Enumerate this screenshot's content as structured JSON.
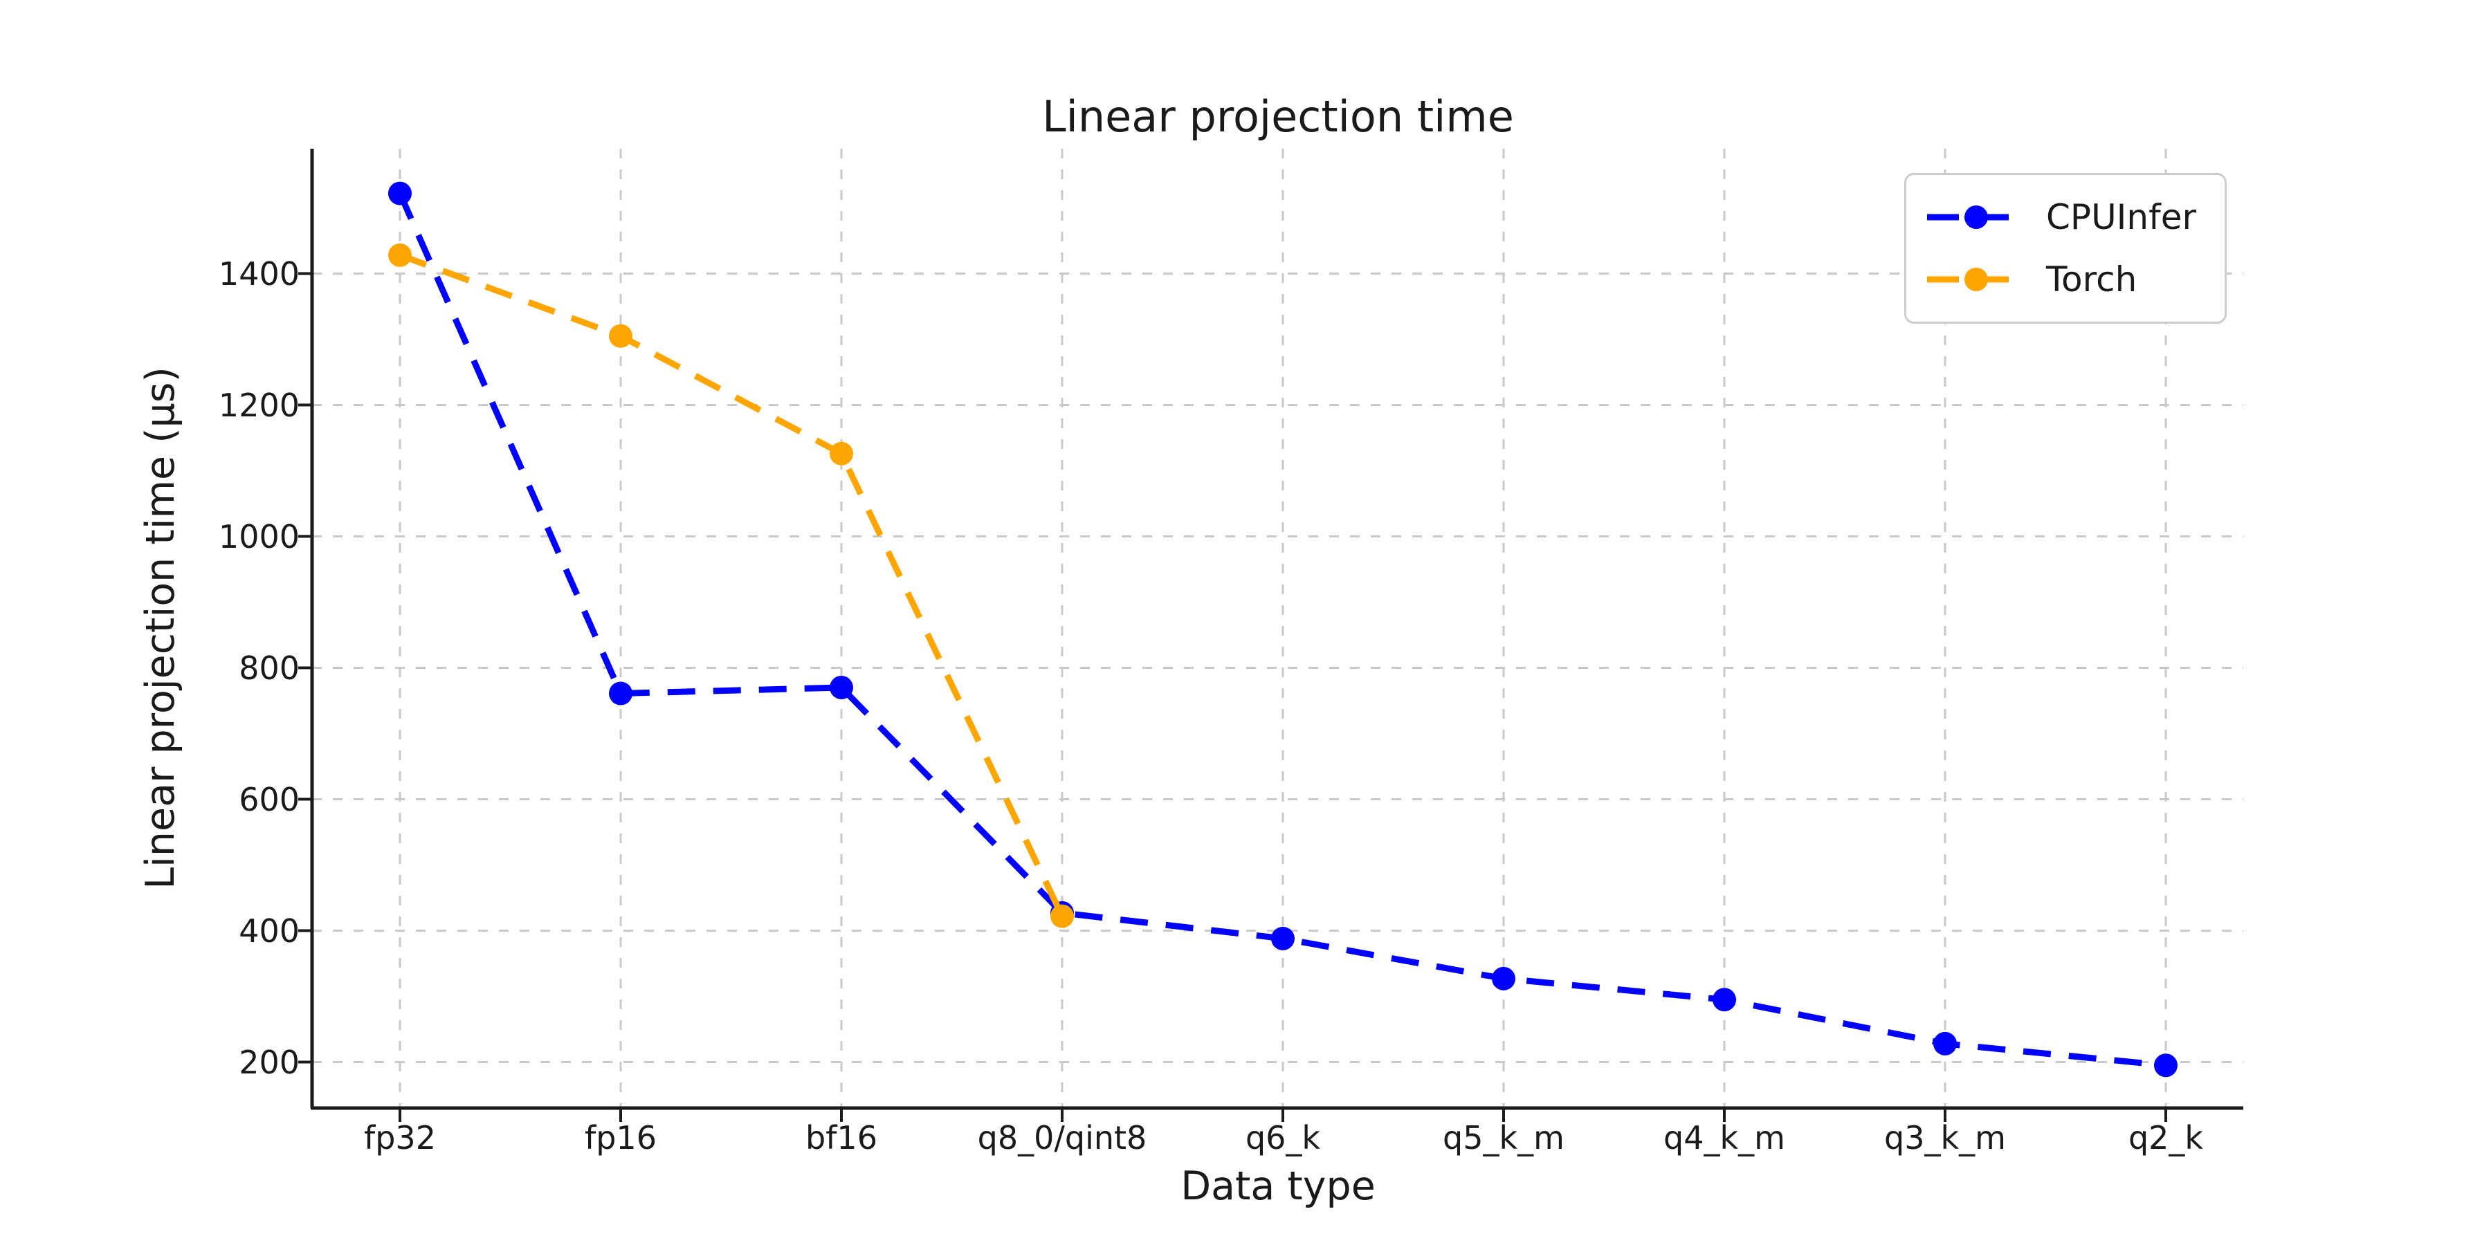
{
  "chart_data": {
    "type": "line",
    "title": "Linear projection time",
    "xlabel": "Data type",
    "ylabel": "Linear projection time (μs)",
    "categories": [
      "fp32",
      "fp16",
      "bf16",
      "q8_0/qint8",
      "q6_k",
      "q5_k_m",
      "q4_k_m",
      "q3_k_m",
      "q2_k"
    ],
    "yticks": [
      200,
      400,
      600,
      800,
      1000,
      1200,
      1400
    ],
    "ylim": [
      130,
      1590
    ],
    "grid": true,
    "grid_style": "dashed",
    "legend_position": "upper right",
    "line_style": "dashed",
    "marker": "circle",
    "series": [
      {
        "name": "CPUInfer",
        "color": "#0000ff",
        "values": [
          1522,
          761,
          770,
          427,
          388,
          327,
          295,
          228,
          195
        ]
      },
      {
        "name": "Torch",
        "color": "#ffa500",
        "values": [
          1428,
          1305,
          1126,
          422,
          null,
          null,
          null,
          null,
          null
        ]
      }
    ]
  },
  "style_colors": {
    "text": "#1a1a1a",
    "spine": "#1a1a1a",
    "gridline": "#c9c9c9",
    "background": "#ffffff"
  }
}
